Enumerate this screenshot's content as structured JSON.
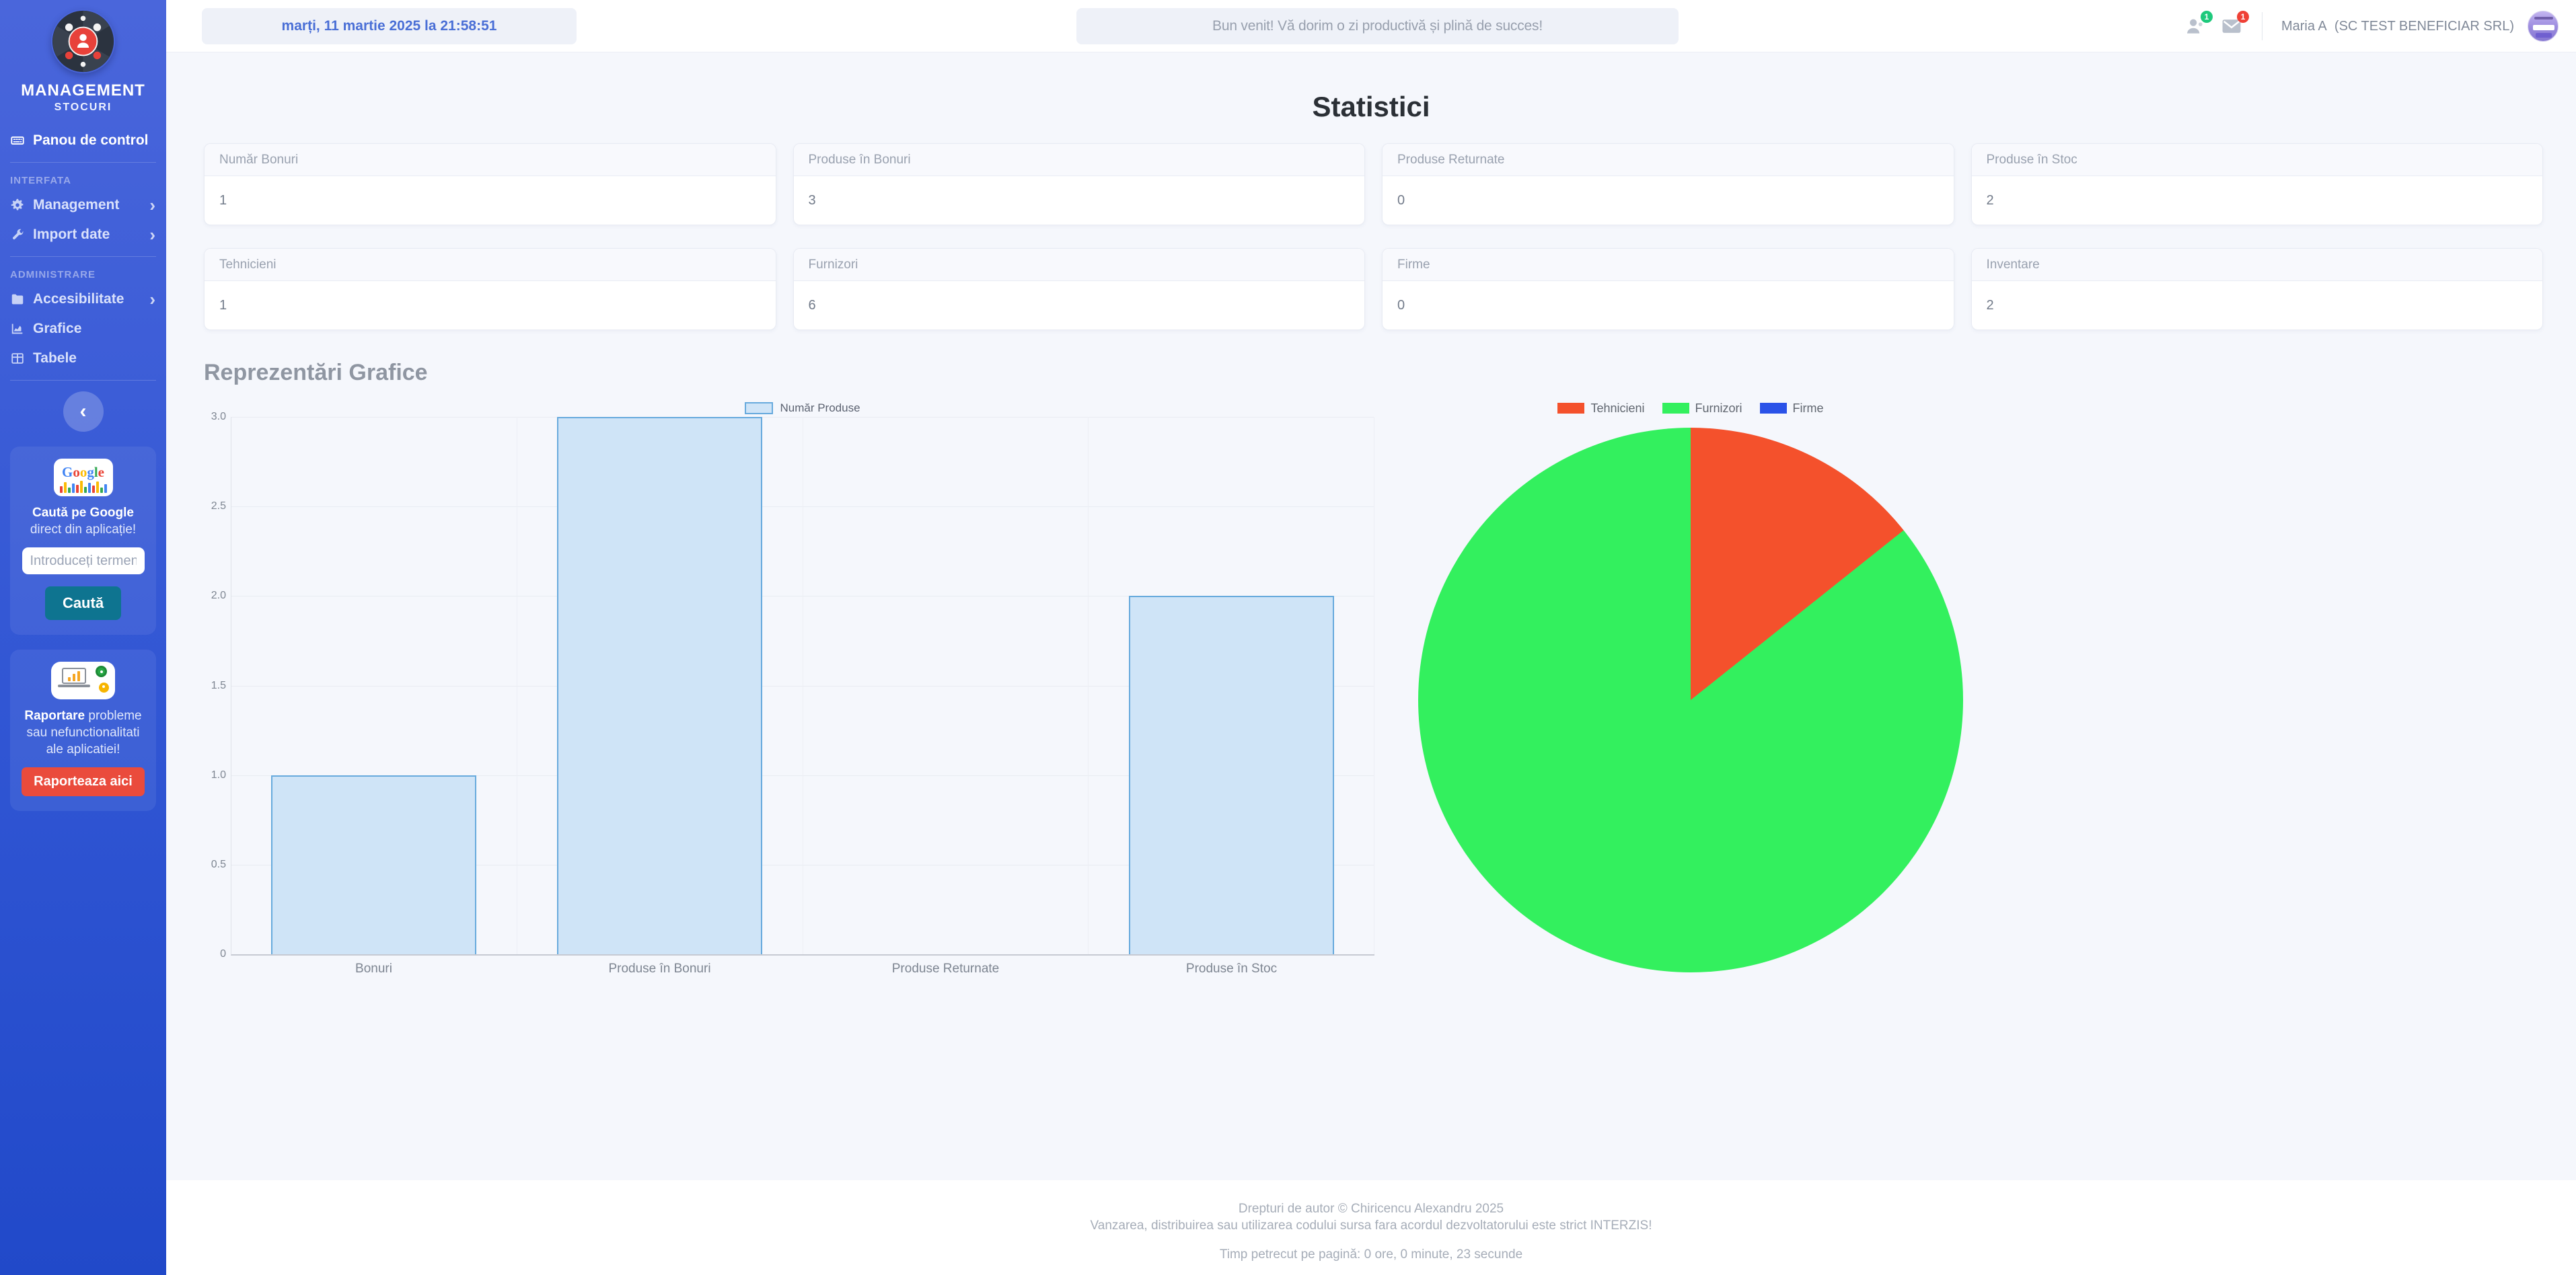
{
  "sidebar": {
    "brand": {
      "title": "MANAGEMENT",
      "subtitle": "STOCURI"
    },
    "dashboard": {
      "label": "Panou de control"
    },
    "sections": [
      {
        "heading": "INTERFATA",
        "items": [
          {
            "label": "Management"
          },
          {
            "label": "Import date"
          }
        ]
      },
      {
        "heading": "ADMINISTRARE",
        "items": [
          {
            "label": "Accesibilitate"
          },
          {
            "label": "Grafice"
          },
          {
            "label": "Tabele"
          }
        ]
      }
    ],
    "collapse_icon": "‹",
    "google_widget": {
      "logo_text": "Google",
      "caption_bold": "Caută pe Google",
      "caption_rest": " direct din aplicație!",
      "input_placeholder": "Introduceți termeni",
      "button_label": "Caută"
    },
    "report_widget": {
      "caption_bold": "Raportare",
      "caption_rest": " probleme sau nefunctionalitati ale aplicatiei!",
      "button_label": "Raporteaza aici"
    }
  },
  "topbar": {
    "datetime": "marți, 11 martie 2025 la 21:58:51",
    "welcome": "Bun venit! Vă dorim o zi productivă și plină de succes!",
    "notifications": {
      "users_badge": "1",
      "mail_badge": "1"
    },
    "user": {
      "name": "Maria A",
      "company": "(SC TEST BENEFICIAR SRL)"
    }
  },
  "main": {
    "title": "Statistici",
    "charts_title": "Reprezentări Grafice",
    "stat_cards": [
      {
        "label": "Număr Bonuri",
        "value": "1"
      },
      {
        "label": "Produse în Bonuri",
        "value": "3"
      },
      {
        "label": "Produse Returnate",
        "value": "0"
      },
      {
        "label": "Produse în Stoc",
        "value": "2"
      },
      {
        "label": "Tehnicieni",
        "value": "1"
      },
      {
        "label": "Furnizori",
        "value": "6"
      },
      {
        "label": "Firme",
        "value": "0"
      },
      {
        "label": "Inventare",
        "value": "2"
      }
    ]
  },
  "chart_data": [
    {
      "type": "bar",
      "title": "",
      "legend": "Număr Produse",
      "categories": [
        "Bonuri",
        "Produse în Bonuri",
        "Produse Returnate",
        "Produse în Stoc"
      ],
      "values": [
        1,
        3,
        0,
        2
      ],
      "xlabel": "",
      "ylabel": "",
      "ylim": [
        0,
        3
      ],
      "yticks": [
        0,
        0.5,
        1.0,
        1.5,
        2.0,
        2.5,
        3.0
      ],
      "grid": true,
      "legend_position": "top-center",
      "bar_fill": "#cfe4f7",
      "bar_border": "#67aadd"
    },
    {
      "type": "pie",
      "labels": [
        "Tehnicieni",
        "Furnizori",
        "Firme"
      ],
      "values": [
        1,
        6,
        0
      ],
      "colors": [
        "#f4512c",
        "#33f05e",
        "#2a52e8"
      ],
      "legend_position": "top-center"
    }
  ],
  "footer": {
    "line1": "Drepturi de autor © Chiricencu Alexandru 2025",
    "line2": "Vanzarea, distribuirea sau utilizarea codului sursa fara acordul dezvoltatorului este strict INTERZIS!",
    "line3": "Timp petrecut pe pagină: 0 ore, 0 minute, 23 secunde"
  }
}
